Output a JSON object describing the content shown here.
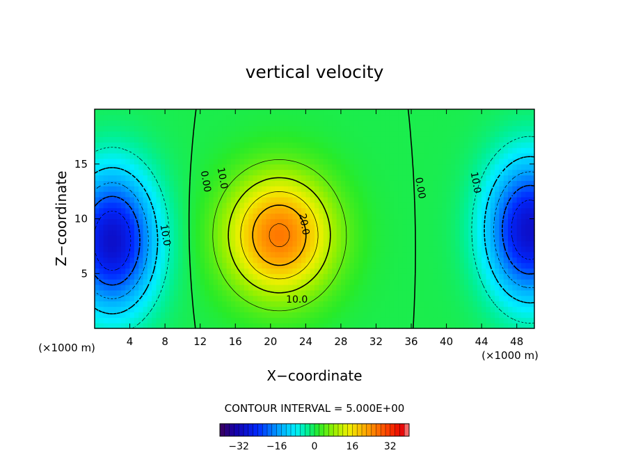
{
  "chart_data": {
    "type": "heatmap",
    "title": "vertical velocity",
    "xlabel": "X−coordinate",
    "ylabel": "Z−coordinate",
    "x_unit": "(×1000 m)",
    "z_unit": "(×1000 m)",
    "xlim": [
      0,
      50
    ],
    "ylim": [
      0,
      20
    ],
    "x_ticks": [
      4,
      8,
      12,
      16,
      20,
      24,
      28,
      32,
      36,
      40,
      44,
      48
    ],
    "y_ticks": [
      5,
      10,
      15
    ],
    "contour_interval_text": "CONTOUR INTERVAL = 5.000E+00",
    "colorbar": {
      "range": [
        -40,
        40
      ],
      "ticks": [
        -32,
        -16,
        0,
        16,
        32
      ],
      "tick_labels": [
        "−32",
        "−16",
        "0",
        "16",
        "32"
      ]
    },
    "fields": [
      {
        "kind": "updraft",
        "x": 21,
        "z": 8.5,
        "amplitude": 26,
        "sx": 4.2,
        "sz": 3.8
      },
      {
        "kind": "downdraft",
        "x": 2,
        "z": 8,
        "amplitude": -30,
        "sx": 3.5,
        "sz": 4.5
      },
      {
        "kind": "downdraft",
        "x": 49.5,
        "z": 9,
        "amplitude": -30,
        "sx": 3.5,
        "sz": 4.5
      }
    ],
    "contour_labels": [
      {
        "text": "10.0",
        "x": 23,
        "z": 2.6,
        "rotate": 0
      },
      {
        "text": "20.0",
        "x": 23.8,
        "z": 9.5,
        "rotate": 80
      },
      {
        "text": "10.0",
        "x": 14.5,
        "z": 13.7,
        "rotate": 80
      },
      {
        "text": "0.00",
        "x": 12.6,
        "z": 13.4,
        "rotate": 80
      },
      {
        "text": "0.00",
        "x": 37,
        "z": 12.8,
        "rotate": 80
      },
      {
        "text": "10.0",
        "x": 8,
        "z": 8.5,
        "rotate": 80
      },
      {
        "text": "10.0",
        "x": 43.3,
        "z": 13.3,
        "rotate": 80
      }
    ]
  }
}
